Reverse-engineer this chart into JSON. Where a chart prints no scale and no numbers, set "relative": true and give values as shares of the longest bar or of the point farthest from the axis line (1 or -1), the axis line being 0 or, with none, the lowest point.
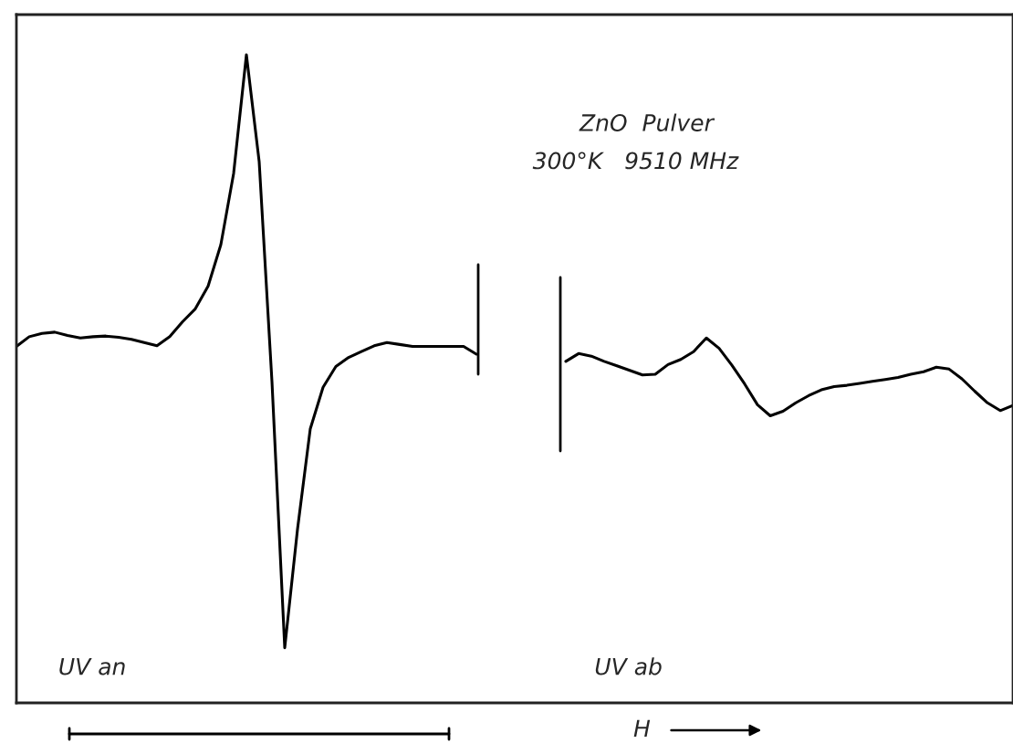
{
  "chart_data": {
    "type": "line",
    "relative": true,
    "xlabel": "H",
    "annotations": [
      "ZnO  Pulver",
      "300°K   9510 MHz",
      "UV an",
      "UV ab"
    ],
    "categories": [
      null,
      null,
      null,
      null,
      null,
      null,
      null,
      null,
      null,
      null,
      null,
      null,
      null,
      null,
      null,
      null,
      null,
      null,
      null,
      null,
      null,
      null,
      null,
      null,
      null,
      null,
      null,
      null,
      null,
      null,
      null,
      null,
      null,
      null,
      null,
      null,
      null,
      null,
      null,
      null,
      null,
      null,
      null,
      null,
      null,
      null,
      null,
      null,
      null,
      null,
      null,
      null,
      null,
      null,
      null,
      null,
      null,
      null,
      null,
      null,
      null,
      null,
      null,
      null,
      null,
      null,
      null,
      null,
      null,
      null,
      null,
      null,
      null,
      null,
      null,
      null,
      null,
      null,
      null
    ],
    "series": [
      {
        "color": "#000000",
        "values": [
          0.55,
          0.565,
          0.57,
          0.572,
          0.567,
          0.563,
          0.565,
          0.566,
          0.564,
          0.561,
          0.556,
          0.551,
          0.565,
          0.588,
          0.608,
          0.643,
          0.707,
          0.817,
          1,
          0.835,
          0.496,
          0.085,
          0.268,
          0.423,
          0.487,
          0.519,
          0.533,
          0.542,
          0.551,
          0.556,
          0.553,
          0.55,
          0.55,
          0.55,
          0.55,
          0.55,
          0.538,
          null,
          null,
          null,
          null,
          null,
          null,
          null,
          null,
          null,
          null,
          null,
          null,
          null,
          null,
          null,
          null,
          null,
          null,
          null,
          null,
          null,
          null,
          null,
          null,
          null,
          null,
          null,
          null,
          null,
          null,
          null,
          null,
          null,
          null,
          null,
          null,
          null,
          null,
          null,
          null,
          null,
          null
        ]
      },
      {
        "color": "#000000",
        "values": [
          null,
          null,
          null,
          null,
          null,
          null,
          null,
          null,
          null,
          null,
          null,
          null,
          null,
          null,
          null,
          null,
          null,
          null,
          null,
          null,
          null,
          null,
          null,
          null,
          null,
          null,
          null,
          null,
          null,
          null,
          null,
          null,
          null,
          null,
          null,
          null,
          null,
          null,
          null,
          null,
          null,
          null,
          null,
          0.527,
          0.539,
          0.535,
          0.527,
          0.52,
          0.513,
          0.506,
          0.507,
          0.522,
          0.53,
          0.542,
          0.563,
          0.547,
          0.521,
          0.492,
          0.46,
          0.443,
          0.45,
          0.463,
          0.474,
          0.483,
          0.488,
          0.49,
          0.493,
          0.496,
          0.499,
          0.502,
          0.507,
          0.511,
          0.518,
          0.515,
          0.5,
          0.481,
          0.463,
          0.451,
          0.459
        ]
      }
    ]
  }
}
